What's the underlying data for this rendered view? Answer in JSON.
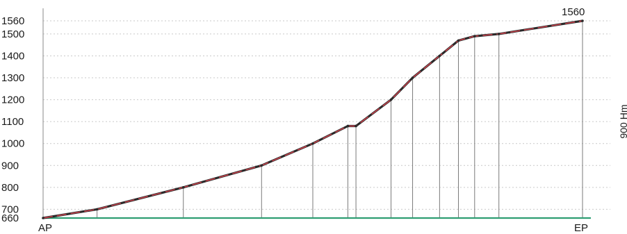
{
  "chart_data": {
    "type": "line",
    "title": "",
    "xlabel": "",
    "ylabel": "",
    "start_label": "AP",
    "end_label": "EP",
    "peak_value_label": "1560",
    "elevation_gain_label": "900 Hm",
    "yticks": [
      660,
      700,
      800,
      900,
      1000,
      1100,
      1200,
      1300,
      1400,
      1500,
      1560
    ],
    "ylim": [
      660,
      1560
    ],
    "grid": true,
    "x": [
      0,
      0.1,
      0.26,
      0.405,
      0.5,
      0.565,
      0.58,
      0.645,
      0.685,
      0.735,
      0.77,
      0.8,
      0.845,
      1.0
    ],
    "series": [
      {
        "values": [
          660,
          700,
          800,
          900,
          1000,
          1080,
          1080,
          1200,
          1300,
          1400,
          1470,
          1490,
          1500,
          1560
        ]
      }
    ],
    "colors": {
      "profile_line": "#2a2a2a",
      "profile_highlight": "#d64550",
      "baseline": "#2f9e73",
      "grid": "#c9c9c9",
      "drop_line": "#7a7a7a"
    }
  }
}
